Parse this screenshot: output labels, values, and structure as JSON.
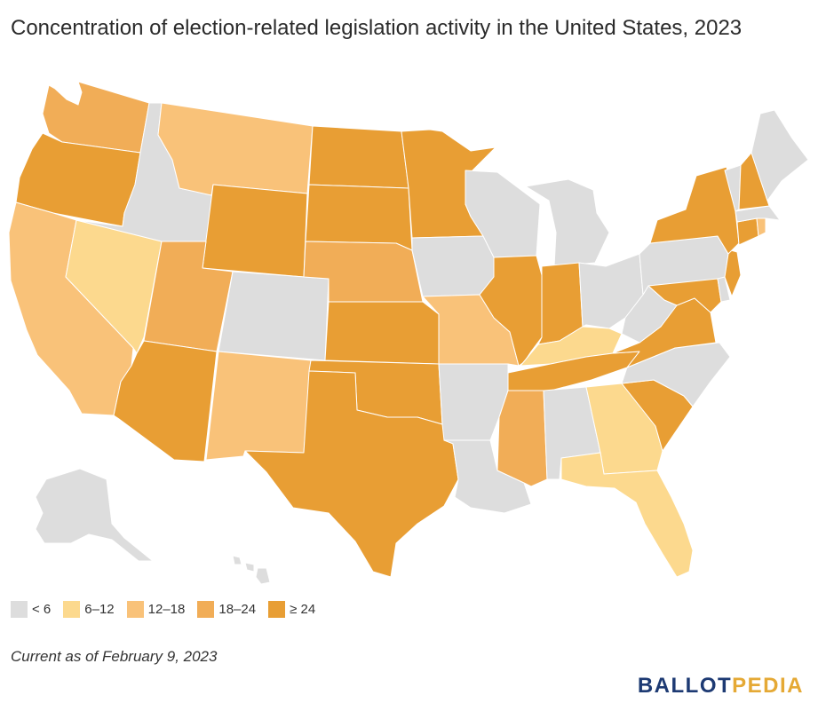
{
  "title": "Concentration of election-related legislation activity in the United States, 2023",
  "colors": {
    "c0": "#dddddd",
    "c1": "#fcd98e",
    "c2": "#f9c279",
    "c3": "#f1ad57",
    "c4": "#e89e34"
  },
  "legend": [
    {
      "label": "< 6",
      "color": "#dddddd"
    },
    {
      "label": "6–12",
      "color": "#fcd98e"
    },
    {
      "label": "12–18",
      "color": "#f9c279"
    },
    {
      "label": "18–24",
      "color": "#f1ad57"
    },
    {
      "label": "≥ 24",
      "color": "#e89e34"
    }
  ],
  "state_categories": {
    "WA": "18–24",
    "OR": "≥ 24",
    "CA": "12–18",
    "NV": "6–12",
    "ID": "< 6",
    "MT": "12–18",
    "WY": "≥ 24",
    "UT": "18–24",
    "AZ": "≥ 24",
    "CO": "< 6",
    "NM": "12–18",
    "ND": "≥ 24",
    "SD": "≥ 24",
    "NE": "18–24",
    "KS": "≥ 24",
    "OK": "≥ 24",
    "TX": "≥ 24",
    "MN": "≥ 24",
    "IA": "< 6",
    "MO": "12–18",
    "AR": "< 6",
    "LA": "< 6",
    "WI": "< 6",
    "IL": "≥ 24",
    "MI": "< 6",
    "IN": "≥ 24",
    "OH": "< 6",
    "KY": "6–12",
    "TN": "≥ 24",
    "MS": "18–24",
    "AL": "< 6",
    "GA": "6–12",
    "FL": "6–12",
    "SC": "≥ 24",
    "NC": "< 6",
    "VA": "≥ 24",
    "WV": "< 6",
    "PA": "< 6",
    "NY": "≥ 24",
    "VT": "< 6",
    "NH": "≥ 24",
    "ME": "< 6",
    "MA": "< 6",
    "RI": "12–18",
    "CT": "≥ 24",
    "NJ": "≥ 24",
    "DE": "< 6",
    "MD": "≥ 24",
    "AK": "< 6",
    "HI": "< 6"
  },
  "footnote": "Current as of February 9, 2023",
  "logo": {
    "part1": "BALLOT",
    "part2": "PEDIA"
  }
}
